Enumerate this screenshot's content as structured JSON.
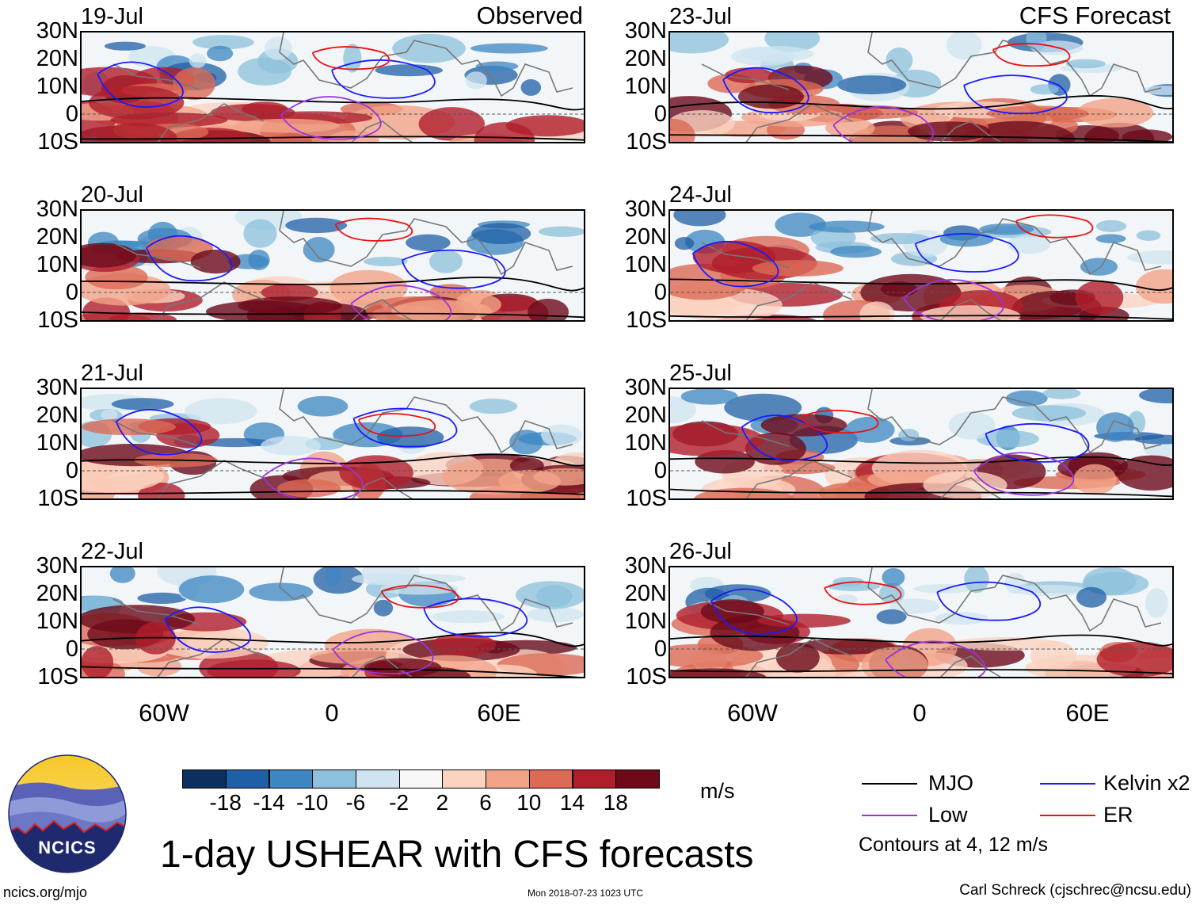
{
  "panel_titles": {
    "left": "Observed",
    "right": "CFS Forecast"
  },
  "panels": [
    {
      "date": "19-Jul",
      "column": "left"
    },
    {
      "date": "20-Jul",
      "column": "left"
    },
    {
      "date": "21-Jul",
      "column": "left"
    },
    {
      "date": "22-Jul",
      "column": "left"
    },
    {
      "date": "23-Jul",
      "column": "right"
    },
    {
      "date": "24-Jul",
      "column": "right"
    },
    {
      "date": "25-Jul",
      "column": "right"
    },
    {
      "date": "26-Jul",
      "column": "right"
    }
  ],
  "lat_labels": [
    "30N",
    "20N",
    "10N",
    "0",
    "10S"
  ],
  "lon_labels": [
    "60W",
    "0",
    "60E"
  ],
  "colorbar": {
    "labels": [
      "-18",
      "-14",
      "-10",
      "-6",
      "-2",
      "2",
      "6",
      "10",
      "14",
      "18"
    ],
    "colors": [
      "#0b2f5e",
      "#1f5fa6",
      "#3c86c2",
      "#8cc0dc",
      "#cfe4f0",
      "#f8f8f8",
      "#fbd3c0",
      "#f2a488",
      "#dc6a55",
      "#b01e2c",
      "#6c0a1a"
    ],
    "unit": "m/s"
  },
  "legend": {
    "items": [
      {
        "label": "MJO",
        "color": "#000000"
      },
      {
        "label": "Kelvin x2",
        "color": "#1a1aff"
      },
      {
        "label": "Low",
        "color": "#9933dd"
      },
      {
        "label": "ER",
        "color": "#ee1111"
      }
    ],
    "contours_note": "Contours at 4, 12 m/s"
  },
  "logo_text": "NCICS",
  "main_title": "1-day USHEAR with CFS forecasts",
  "footer": {
    "left": "ncics.org/mjo",
    "center": "Mon 2018-07-23 1023 UTC",
    "right": "Carl Schreck (cjschrec@ncsu.edu)"
  }
}
